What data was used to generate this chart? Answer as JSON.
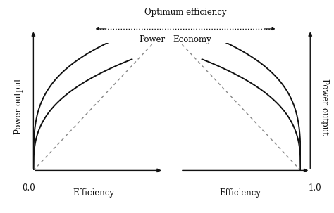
{
  "bg_color": "#ffffff",
  "line_color": "#111111",
  "dashed_color": "#888888",
  "title_text": "Optimum efficiency",
  "arrow_label_left": "Power",
  "arrow_label_right": "Economy",
  "left_xlabel": "Efficiency",
  "right_xlabel": "Efficiency",
  "left_ylabel": "Power output",
  "right_ylabel": "Power output",
  "left_x0_label": "0.0",
  "right_x1_label": "1.0"
}
